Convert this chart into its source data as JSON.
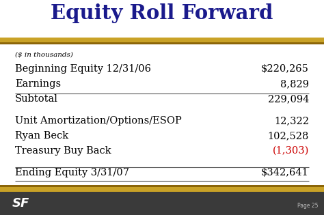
{
  "title": "Equity Roll Forward",
  "title_color": "#1a1a8c",
  "bg_color": "#ffffff",
  "gold_color": "#c9a227",
  "dark_gold_color": "#8b6508",
  "footer_bg": "#3a3a3a",
  "subtitle": "($ in thousands)",
  "rows": [
    {
      "label": "Beginning Equity 12/31/06",
      "value": "$220,265",
      "value_color": "#000000",
      "line_above": false,
      "gap_above": false
    },
    {
      "label": "Earnings",
      "value": "8,829",
      "value_color": "#000000",
      "line_above": false,
      "gap_above": false
    },
    {
      "label": "Subtotal",
      "value": "229,094",
      "value_color": "#000000",
      "line_above": true,
      "gap_above": false
    },
    {
      "label": "Unit Amortization/Options/ESOP",
      "value": "12,322",
      "value_color": "#000000",
      "line_above": false,
      "gap_above": true
    },
    {
      "label": "Ryan Beck",
      "value": "102,528",
      "value_color": "#000000",
      "line_above": false,
      "gap_above": false
    },
    {
      "label": "Treasury Buy Back",
      "value": "(1,303)",
      "value_color": "#cc0000",
      "line_above": false,
      "gap_above": false
    },
    {
      "label": "Ending Equity 3/31/07",
      "value": "$342,641",
      "value_color": "#000000",
      "line_above": true,
      "gap_above": true
    }
  ],
  "logo_text": "SF",
  "page_text": "Page 25",
  "fig_width": 4.74,
  "fig_height": 3.15,
  "dpi": 100
}
